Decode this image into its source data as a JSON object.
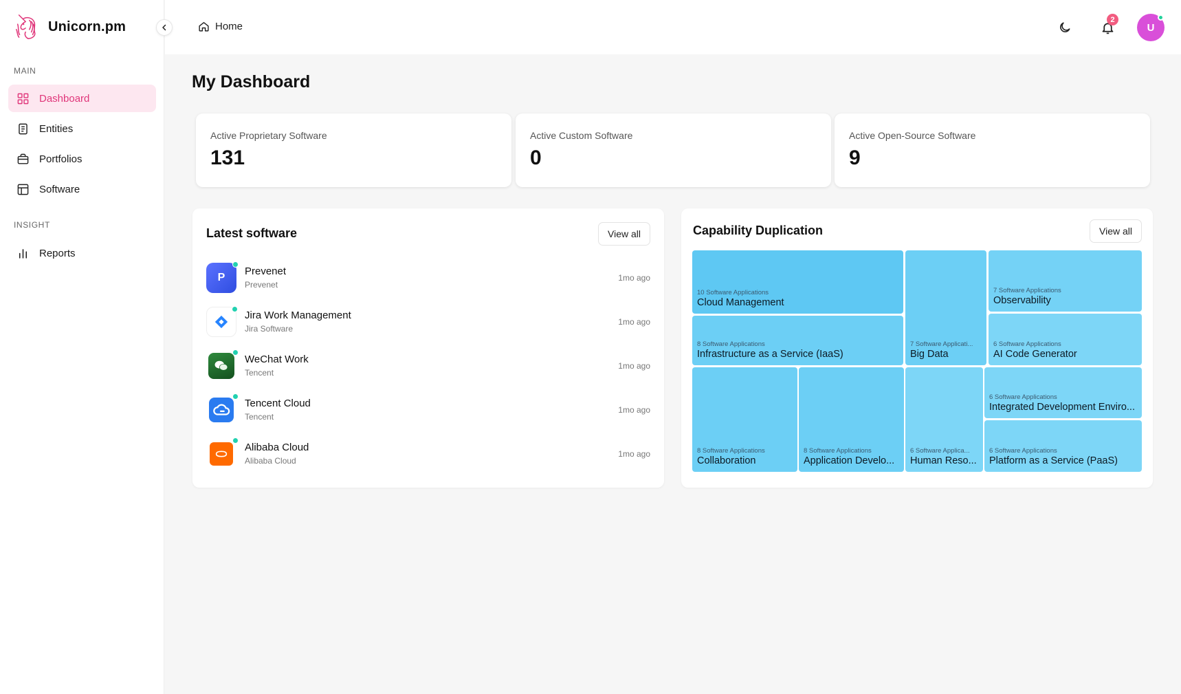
{
  "app": {
    "name": "Unicorn.pm"
  },
  "sidebar": {
    "sections": [
      {
        "label": "MAIN"
      },
      {
        "label": "INSIGHT"
      }
    ],
    "items": [
      {
        "label": "Dashboard",
        "icon": "grid-icon",
        "active": true
      },
      {
        "label": "Entities",
        "icon": "document-icon"
      },
      {
        "label": "Portfolios",
        "icon": "briefcase-icon"
      },
      {
        "label": "Software",
        "icon": "layout-icon"
      },
      {
        "label": "Reports",
        "icon": "bar-chart-icon"
      }
    ]
  },
  "header": {
    "breadcrumb": "Home",
    "notifications_count": "2",
    "avatar_initial": "U"
  },
  "main": {
    "title": "My Dashboard",
    "stats": [
      {
        "label": "Active Proprietary Software",
        "value": "131"
      },
      {
        "label": "Active Custom Software",
        "value": "0"
      },
      {
        "label": "Active Open-Source Software",
        "value": "9"
      }
    ],
    "latest": {
      "title": "Latest software",
      "view_all": "View all",
      "items": [
        {
          "name": "Prevenet",
          "vendor": "Prevenet",
          "time": "1mo ago",
          "icon_text": "P",
          "color": "#3b5cf0"
        },
        {
          "name": "Jira Work Management",
          "vendor": "Jira Software",
          "time": "1mo ago",
          "icon_text": "",
          "color": "#2684ff"
        },
        {
          "name": "WeChat Work",
          "vendor": "Tencent",
          "time": "1mo ago",
          "icon_text": "",
          "color": "#1d6b2c"
        },
        {
          "name": "Tencent Cloud",
          "vendor": "Tencent",
          "time": "1mo ago",
          "icon_text": "",
          "color": "#2a7bf0"
        },
        {
          "name": "Alibaba Cloud",
          "vendor": "Alibaba Cloud",
          "time": "1mo ago",
          "icon_text": "",
          "color": "#ff6a00"
        }
      ]
    },
    "capability": {
      "title": "Capability Duplication",
      "view_all": "View all",
      "tiles": [
        {
          "count": "10 Software Applications",
          "name": "Cloud Management",
          "color": "#5ec8f3"
        },
        {
          "count": "8 Software Applications",
          "name": "Infrastructure as a Service (IaaS)",
          "color": "#6ccff5"
        },
        {
          "count": "7 Software Applicati...",
          "name": "Big Data",
          "color": "#6ccff5"
        },
        {
          "count": "7 Software Applications",
          "name": "Observability",
          "color": "#74d2f6"
        },
        {
          "count": "6 Software Applications",
          "name": "AI Code Generator",
          "color": "#7dd6f7"
        },
        {
          "count": "8 Software Applications",
          "name": "Collaboration",
          "color": "#6ccff5"
        },
        {
          "count": "8 Software Applications",
          "name": "Application Develo...",
          "color": "#6ccff5"
        },
        {
          "count": "6 Software Applica...",
          "name": "Human Reso...",
          "color": "#7dd6f7"
        },
        {
          "count": "6 Software Applications",
          "name": "Integrated Development Enviro...",
          "color": "#7dd6f7"
        },
        {
          "count": "6 Software Applications",
          "name": "Platform as a Service (PaaS)",
          "color": "#7dd6f7"
        }
      ]
    }
  }
}
